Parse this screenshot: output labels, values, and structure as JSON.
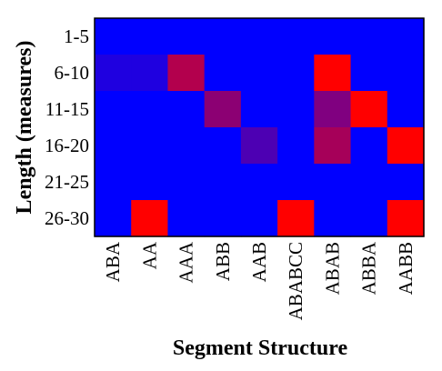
{
  "chart_data": {
    "type": "heatmap",
    "xlabel": "Segment Structure",
    "ylabel": "Length (measures)",
    "x_categories": [
      "ABA",
      "AA",
      "AAA",
      "ABB",
      "AAB",
      "ABABCC",
      "ABAB",
      "ABBA",
      "AABB"
    ],
    "y_categories": [
      "1-5",
      "6-10",
      "11-15",
      "16-20",
      "21-25",
      "26-30"
    ],
    "value_range": [
      0,
      1
    ],
    "colormap": {
      "low": "#0000ff",
      "high": "#ff0000"
    },
    "values": [
      [
        0.0,
        0.0,
        0.0,
        0.0,
        0.0,
        0.0,
        0.0,
        0.0,
        0.0
      ],
      [
        0.12,
        0.12,
        0.7,
        0.0,
        0.0,
        0.0,
        1.0,
        0.0,
        0.0
      ],
      [
        0.0,
        0.0,
        0.0,
        0.55,
        0.0,
        0.0,
        0.5,
        1.0,
        0.0
      ],
      [
        0.0,
        0.0,
        0.0,
        0.0,
        0.3,
        0.0,
        0.65,
        0.0,
        1.0
      ],
      [
        0.0,
        0.0,
        0.0,
        0.0,
        0.0,
        0.0,
        0.0,
        0.0,
        0.0
      ],
      [
        0.0,
        1.0,
        0.0,
        0.0,
        0.0,
        1.0,
        0.0,
        0.0,
        1.0
      ]
    ]
  }
}
